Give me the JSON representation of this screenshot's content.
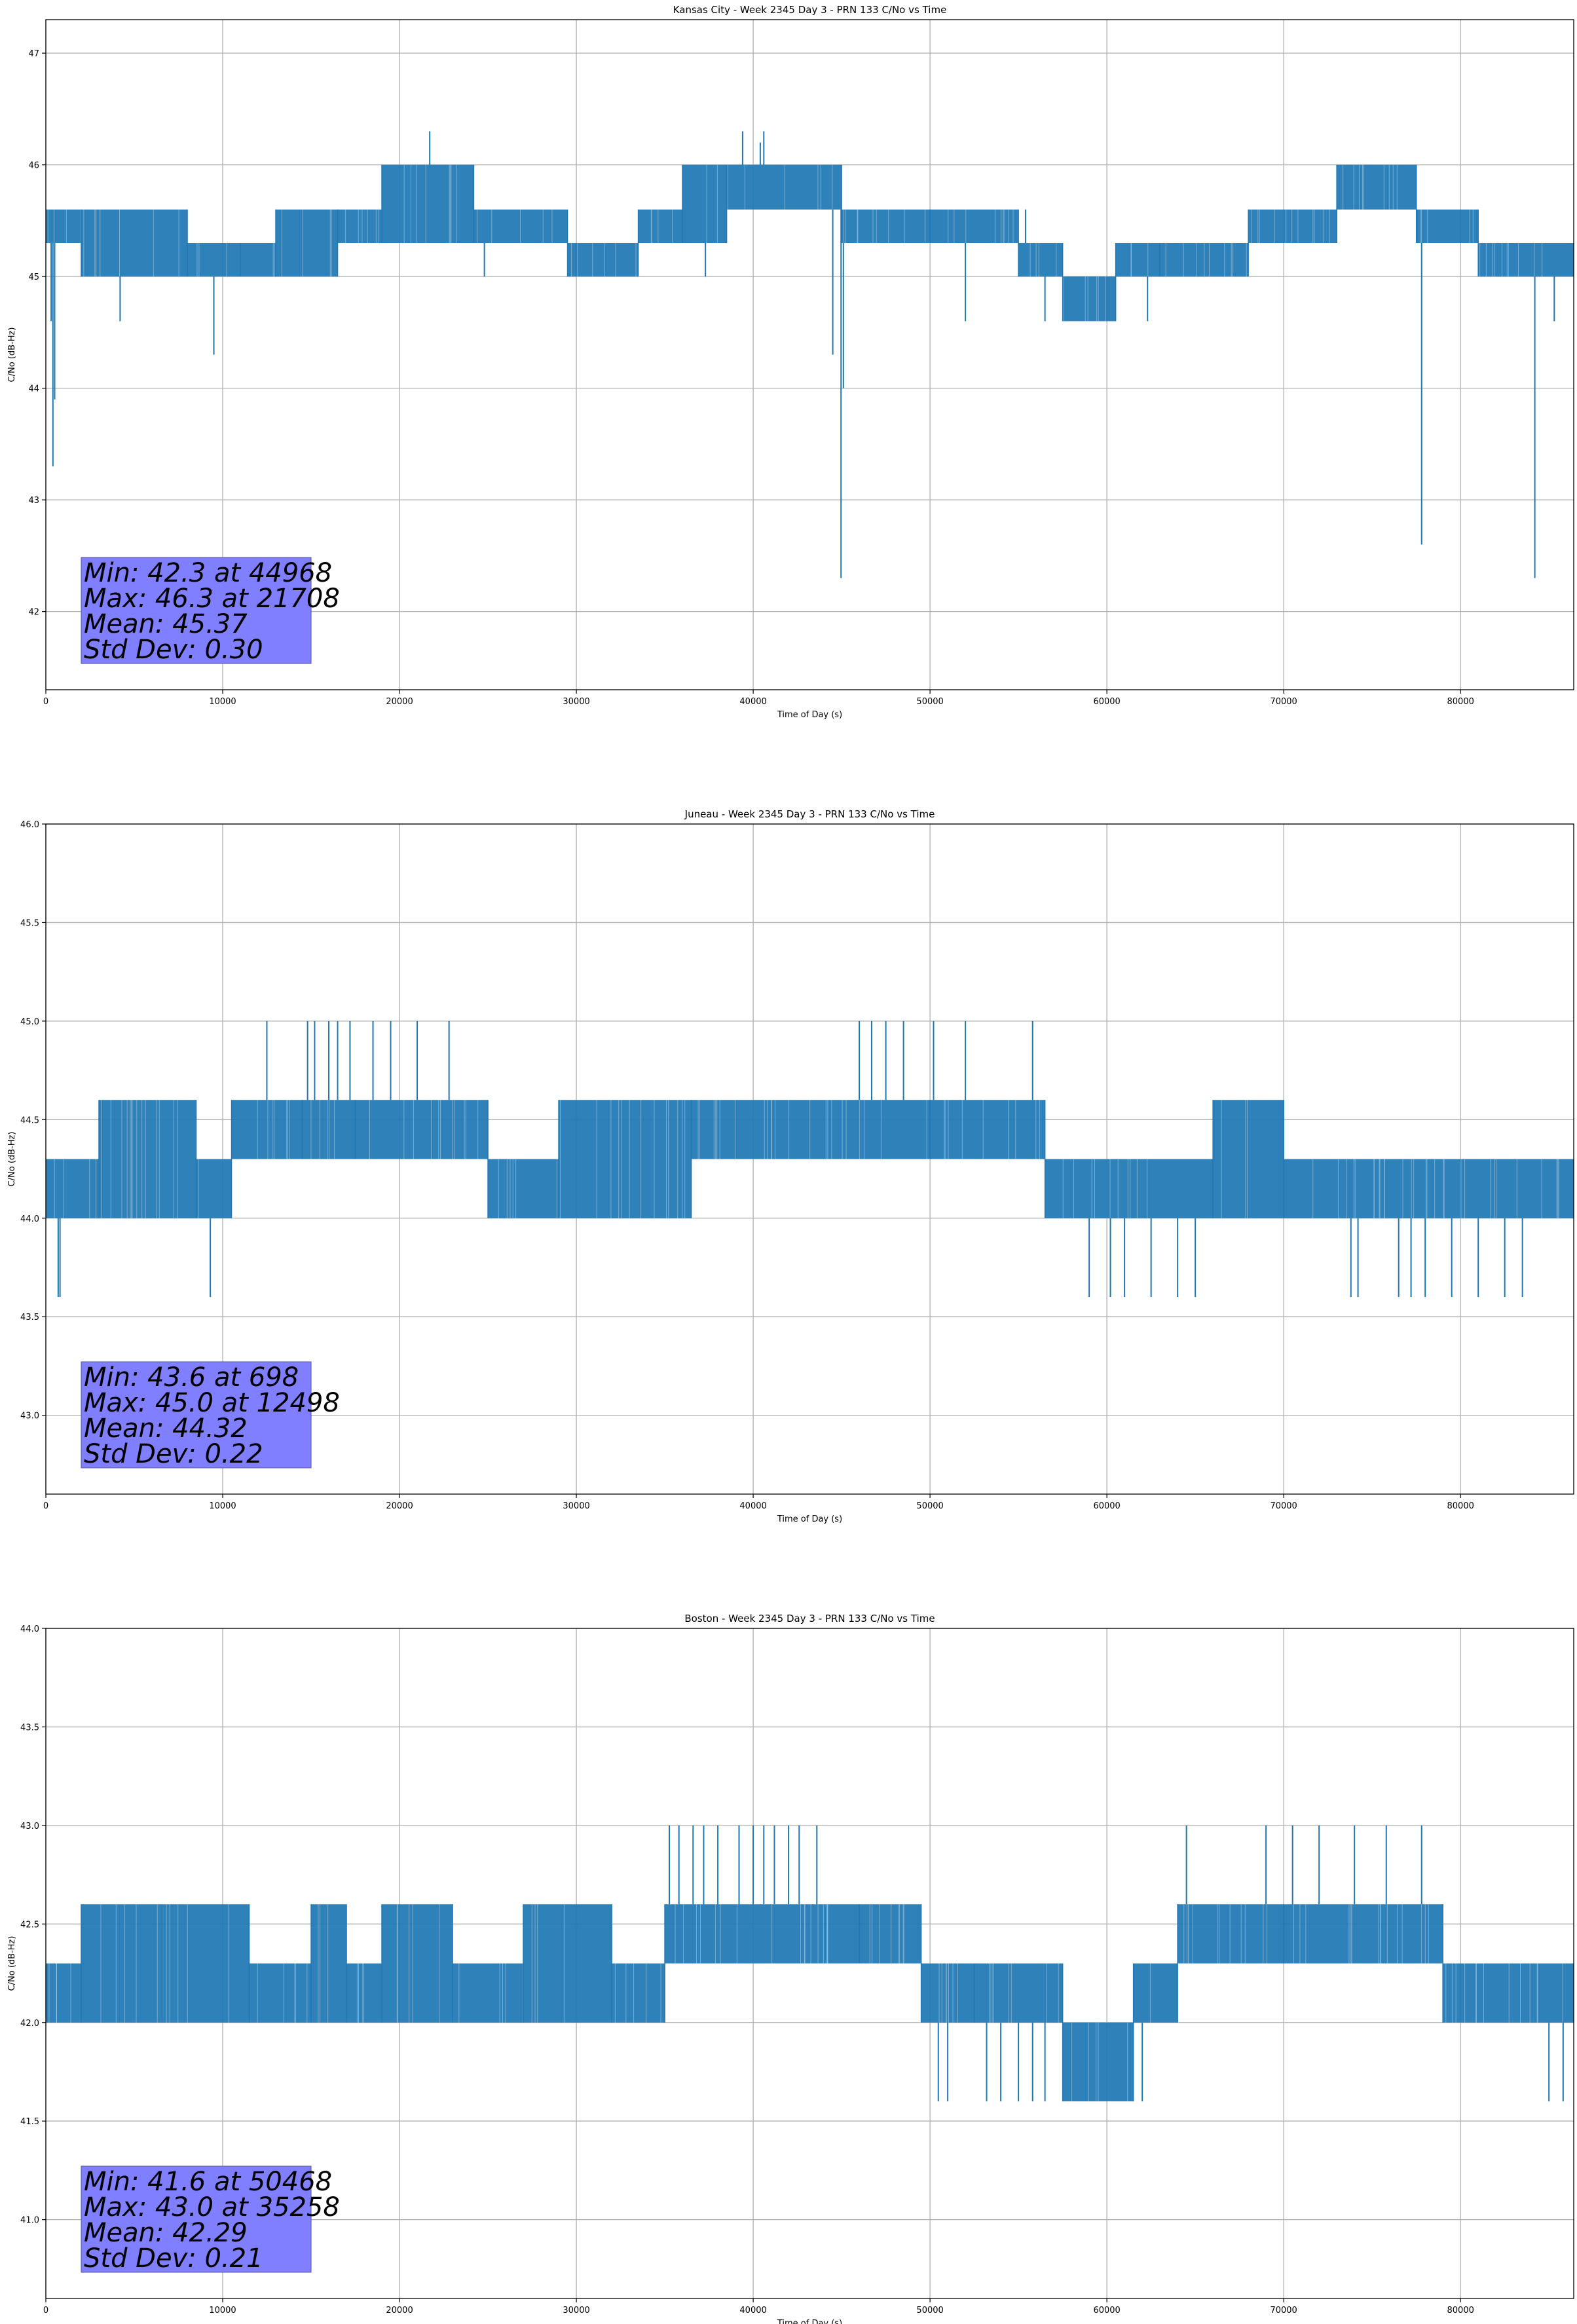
{
  "chart_data": [
    {
      "type": "line",
      "title": "Kansas City - Week 2345 Day 3 - PRN 133 C/No vs Time",
      "xlabel": "Time of Day (s)",
      "ylabel": "C/No (dB-Hz)",
      "xlim": [
        0,
        86400
      ],
      "ylim": [
        41.3,
        47.3
      ],
      "xticks": [
        0,
        10000,
        20000,
        30000,
        40000,
        50000,
        60000,
        70000,
        80000
      ],
      "yticks": [
        42,
        43,
        44,
        45,
        46,
        47
      ],
      "ytick_labels": [
        "42",
        "43",
        "44",
        "45",
        "46",
        "47"
      ],
      "grid": true,
      "color": "#1f77b4",
      "bands": [
        {
          "x": [
            0,
            2000
          ],
          "low": 45.3,
          "high": 45.6
        },
        {
          "x": [
            2000,
            8000
          ],
          "low": 45.0,
          "high": 45.6
        },
        {
          "x": [
            8000,
            11000
          ],
          "low": 45.0,
          "high": 45.3
        },
        {
          "x": [
            11000,
            13000
          ],
          "low": 45.0,
          "high": 45.3
        },
        {
          "x": [
            13000,
            16500
          ],
          "low": 45.0,
          "high": 45.6
        },
        {
          "x": [
            16500,
            19000
          ],
          "low": 45.3,
          "high": 45.6
        },
        {
          "x": [
            19000,
            24200
          ],
          "low": 45.3,
          "high": 46.0
        },
        {
          "x": [
            24200,
            29500
          ],
          "low": 45.3,
          "high": 45.6
        },
        {
          "x": [
            29500,
            33500
          ],
          "low": 45.0,
          "high": 45.3
        },
        {
          "x": [
            33500,
            36000
          ],
          "low": 45.3,
          "high": 45.6
        },
        {
          "x": [
            36000,
            38500
          ],
          "low": 45.3,
          "high": 46.0
        },
        {
          "x": [
            38500,
            45000
          ],
          "low": 45.6,
          "high": 46.0
        },
        {
          "x": [
            45000,
            50000
          ],
          "low": 45.3,
          "high": 45.6
        },
        {
          "x": [
            50000,
            55000
          ],
          "low": 45.3,
          "high": 45.6
        },
        {
          "x": [
            55000,
            57500
          ],
          "low": 45.0,
          "high": 45.3
        },
        {
          "x": [
            57500,
            60500
          ],
          "low": 44.6,
          "high": 45.0
        },
        {
          "x": [
            60500,
            63000
          ],
          "low": 45.0,
          "high": 45.3
        },
        {
          "x": [
            63000,
            68000
          ],
          "low": 45.0,
          "high": 45.3
        },
        {
          "x": [
            68000,
            73000
          ],
          "low": 45.3,
          "high": 45.6
        },
        {
          "x": [
            73000,
            77500
          ],
          "low": 45.6,
          "high": 46.0
        },
        {
          "x": [
            77500,
            81000
          ],
          "low": 45.3,
          "high": 45.6
        },
        {
          "x": [
            81000,
            86400
          ],
          "low": 45.0,
          "high": 45.3
        }
      ],
      "spikes": [
        [
          300,
          44.6
        ],
        [
          400,
          43.3
        ],
        [
          500,
          43.9
        ],
        [
          4200,
          44.6
        ],
        [
          9500,
          44.3
        ],
        [
          21708,
          46.3
        ],
        [
          24800,
          45.0
        ],
        [
          37300,
          45.0
        ],
        [
          39400,
          46.3
        ],
        [
          40400,
          46.2
        ],
        [
          40600,
          46.3
        ],
        [
          44500,
          44.3
        ],
        [
          44968,
          42.3
        ],
        [
          45100,
          44.0
        ],
        [
          52000,
          44.6
        ],
        [
          55400,
          45.6
        ],
        [
          56500,
          44.6
        ],
        [
          62300,
          44.6
        ],
        [
          77800,
          42.6
        ],
        [
          84200,
          42.3
        ],
        [
          85300,
          44.6
        ]
      ],
      "stats": [
        "Min: 42.3 at 44968",
        "Max: 46.3 at 21708",
        "Mean: 45.37",
        "Std Dev: 0.30"
      ]
    },
    {
      "type": "line",
      "title": "Juneau - Week 2345 Day 3 - PRN 133 C/No vs Time",
      "xlabel": "Time of Day (s)",
      "ylabel": "C/No (dB-Hz)",
      "xlim": [
        0,
        86400
      ],
      "ylim": [
        42.6,
        46.0
      ],
      "xticks": [
        0,
        10000,
        20000,
        30000,
        40000,
        50000,
        60000,
        70000,
        80000
      ],
      "yticks": [
        43.0,
        43.5,
        44.0,
        44.5,
        45.0,
        45.5,
        46.0
      ],
      "ytick_labels": [
        "43.0",
        "43.5",
        "44.0",
        "44.5",
        "45.0",
        "45.5",
        "46.0"
      ],
      "grid": true,
      "color": "#1f77b4",
      "bands": [
        {
          "x": [
            0,
            3000
          ],
          "low": 44.0,
          "high": 44.3
        },
        {
          "x": [
            3000,
            8500
          ],
          "low": 44.0,
          "high": 44.6
        },
        {
          "x": [
            8500,
            10500
          ],
          "low": 44.0,
          "high": 44.3
        },
        {
          "x": [
            10500,
            14500
          ],
          "low": 44.3,
          "high": 44.6
        },
        {
          "x": [
            14500,
            17500
          ],
          "low": 44.3,
          "high": 44.6
        },
        {
          "x": [
            17500,
            25000
          ],
          "low": 44.3,
          "high": 44.6
        },
        {
          "x": [
            25000,
            29000
          ],
          "low": 44.0,
          "high": 44.3
        },
        {
          "x": [
            29000,
            36500
          ],
          "low": 44.0,
          "high": 44.6
        },
        {
          "x": [
            36500,
            50000
          ],
          "low": 44.3,
          "high": 44.6
        },
        {
          "x": [
            50000,
            56500
          ],
          "low": 44.3,
          "high": 44.6
        },
        {
          "x": [
            56500,
            66000
          ],
          "low": 44.0,
          "high": 44.3
        },
        {
          "x": [
            66000,
            70000
          ],
          "low": 44.0,
          "high": 44.6
        },
        {
          "x": [
            70000,
            86400
          ],
          "low": 44.0,
          "high": 44.3
        }
      ],
      "spikes": [
        [
          698,
          43.6
        ],
        [
          800,
          43.6
        ],
        [
          9300,
          43.6
        ],
        [
          12498,
          45.0
        ],
        [
          14800,
          45.0
        ],
        [
          15200,
          45.0
        ],
        [
          16000,
          45.0
        ],
        [
          16500,
          45.0
        ],
        [
          17200,
          45.0
        ],
        [
          18500,
          45.0
        ],
        [
          19500,
          45.0
        ],
        [
          21000,
          45.0
        ],
        [
          22800,
          45.0
        ],
        [
          46000,
          45.0
        ],
        [
          46700,
          45.0
        ],
        [
          47500,
          45.0
        ],
        [
          48500,
          45.0
        ],
        [
          50200,
          45.0
        ],
        [
          52000,
          45.0
        ],
        [
          55800,
          45.0
        ],
        [
          59000,
          43.6
        ],
        [
          60200,
          43.6
        ],
        [
          61000,
          43.6
        ],
        [
          62500,
          43.6
        ],
        [
          64000,
          43.6
        ],
        [
          65000,
          43.6
        ],
        [
          73800,
          43.6
        ],
        [
          74200,
          43.6
        ],
        [
          76500,
          43.6
        ],
        [
          77200,
          43.6
        ],
        [
          78000,
          43.6
        ],
        [
          79500,
          43.6
        ],
        [
          81000,
          43.6
        ],
        [
          82500,
          43.6
        ],
        [
          83500,
          43.6
        ]
      ],
      "stats": [
        "Min: 43.6 at 698",
        "Max: 45.0 at 12498",
        "Mean: 44.32",
        "Std Dev: 0.22"
      ]
    },
    {
      "type": "line",
      "title": "Boston - Week 2345 Day 3 - PRN 133 C/No vs Time",
      "xlabel": "Time of Day (s)",
      "ylabel": "C/No (dB-Hz)",
      "xlim": [
        0,
        86400
      ],
      "ylim": [
        40.6,
        44.0
      ],
      "xticks": [
        0,
        10000,
        20000,
        30000,
        40000,
        50000,
        60000,
        70000,
        80000
      ],
      "yticks": [
        41.0,
        41.5,
        42.0,
        42.5,
        43.0,
        43.5,
        44.0
      ],
      "ytick_labels": [
        "41.0",
        "41.5",
        "42.0",
        "42.5",
        "43.0",
        "43.5",
        "44.0"
      ],
      "grid": true,
      "color": "#1f77b4",
      "bands": [
        {
          "x": [
            0,
            2000
          ],
          "low": 42.0,
          "high": 42.3
        },
        {
          "x": [
            2000,
            11500
          ],
          "low": 42.0,
          "high": 42.6
        },
        {
          "x": [
            11500,
            15000
          ],
          "low": 42.0,
          "high": 42.3
        },
        {
          "x": [
            15000,
            17000
          ],
          "low": 42.0,
          "high": 42.6
        },
        {
          "x": [
            17000,
            19000
          ],
          "low": 42.0,
          "high": 42.3
        },
        {
          "x": [
            19000,
            23000
          ],
          "low": 42.0,
          "high": 42.6
        },
        {
          "x": [
            23000,
            27000
          ],
          "low": 42.0,
          "high": 42.3
        },
        {
          "x": [
            27000,
            32000
          ],
          "low": 42.0,
          "high": 42.6
        },
        {
          "x": [
            32000,
            35000
          ],
          "low": 42.0,
          "high": 42.3
        },
        {
          "x": [
            35000,
            46000
          ],
          "low": 42.3,
          "high": 42.6
        },
        {
          "x": [
            46000,
            49500
          ],
          "low": 42.3,
          "high": 42.6
        },
        {
          "x": [
            49500,
            52500
          ],
          "low": 42.0,
          "high": 42.3
        },
        {
          "x": [
            52500,
            57500
          ],
          "low": 42.0,
          "high": 42.3
        },
        {
          "x": [
            57500,
            61500
          ],
          "low": 41.6,
          "high": 42.0
        },
        {
          "x": [
            61500,
            64000
          ],
          "low": 42.0,
          "high": 42.3
        },
        {
          "x": [
            64000,
            70000
          ],
          "low": 42.3,
          "high": 42.6
        },
        {
          "x": [
            70000,
            79000
          ],
          "low": 42.3,
          "high": 42.6
        },
        {
          "x": [
            79000,
            86400
          ],
          "low": 42.0,
          "high": 42.3
        }
      ],
      "spikes": [
        [
          35258,
          43.0
        ],
        [
          35800,
          43.0
        ],
        [
          36600,
          43.0
        ],
        [
          37200,
          43.0
        ],
        [
          38000,
          43.0
        ],
        [
          39200,
          43.0
        ],
        [
          40000,
          43.0
        ],
        [
          40600,
          43.0
        ],
        [
          41200,
          43.0
        ],
        [
          42000,
          43.0
        ],
        [
          42600,
          43.0
        ],
        [
          43600,
          43.0
        ],
        [
          50468,
          41.6
        ],
        [
          51000,
          41.6
        ],
        [
          53200,
          41.6
        ],
        [
          54000,
          41.6
        ],
        [
          55000,
          41.6
        ],
        [
          55800,
          41.6
        ],
        [
          56500,
          41.6
        ],
        [
          62000,
          41.6
        ],
        [
          64500,
          43.0
        ],
        [
          69000,
          43.0
        ],
        [
          70500,
          43.0
        ],
        [
          72000,
          43.0
        ],
        [
          74000,
          43.0
        ],
        [
          75800,
          43.0
        ],
        [
          77800,
          43.0
        ],
        [
          85000,
          41.6
        ],
        [
          85800,
          41.6
        ]
      ],
      "stats": [
        "Min: 41.6 at 50468",
        "Max: 43.0 at 35258",
        "Mean: 42.29",
        "Std Dev: 0.21"
      ]
    }
  ]
}
